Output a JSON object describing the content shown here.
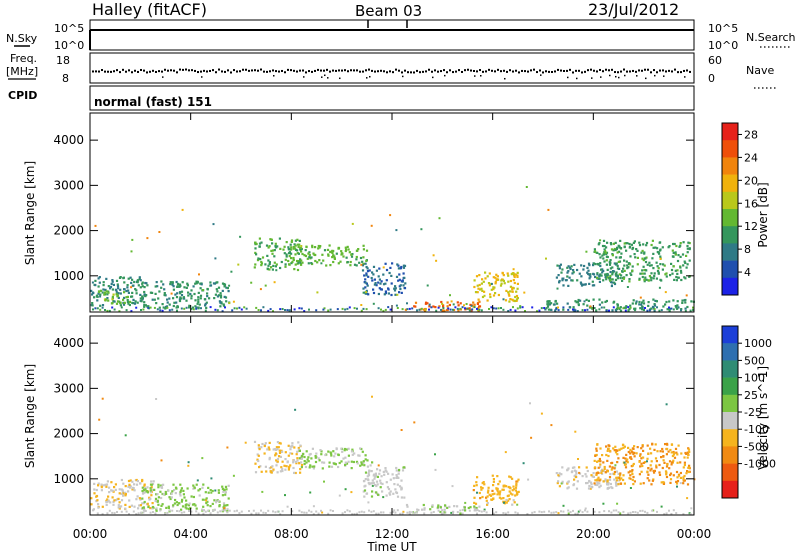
{
  "header": {
    "title": "Halley (fitACF)",
    "beam": "Beam 03",
    "date": "23/Jul/2012"
  },
  "top_panels": {
    "nsky": {
      "label": "N.Sky",
      "tick_hi": "10^5",
      "tick_lo": "10^0"
    },
    "nsearch": {
      "label": "N.Search",
      "tick_hi": "10^5",
      "tick_lo": "10^0"
    },
    "freq": {
      "label_1": "Freq.",
      "label_2": "[MHz]",
      "tick_hi": "18",
      "tick_lo": "8"
    },
    "nave": {
      "label": "Nave",
      "tick_hi": "60",
      "tick_lo": "0"
    },
    "cpid": {
      "label": "CPID",
      "value": "normal (fast) 151"
    }
  },
  "x_axis": {
    "title": "Time UT",
    "ticks": [
      "00:00",
      "04:00",
      "08:00",
      "12:00",
      "16:00",
      "20:00",
      "00:00"
    ]
  },
  "power_panel": {
    "ylabel": "Slant Range [km]",
    "yticks": [
      "1000",
      "2000",
      "3000",
      "4000"
    ],
    "colorbar_label": "Power [dB]",
    "colorbar_ticks": [
      "4",
      "8",
      "12",
      "16",
      "20",
      "24",
      "28"
    ],
    "colors": [
      "#1c22e6",
      "#1f4fae",
      "#2f7a86",
      "#34965c",
      "#63b832",
      "#b9c81a",
      "#f0b20c",
      "#f1840c",
      "#ef4f09",
      "#e6211a"
    ]
  },
  "velocity_panel": {
    "ylabel": "Slant Range [km]",
    "yticks": [
      "1000",
      "2000",
      "3000",
      "4000"
    ],
    "colorbar_label": "Velocity [m s^-1]",
    "colorbar_ticks": [
      "1000",
      "500",
      "100",
      "25",
      "-25",
      "-100",
      "-500",
      "-1000"
    ],
    "colors": [
      "#1c3fd8",
      "#2e6fb0",
      "#2f8c74",
      "#3aa248",
      "#7cc642",
      "#c8c8c8",
      "#f5b41e",
      "#f18a12",
      "#ee5a10",
      "#e6201a"
    ]
  },
  "chart_data": [
    {
      "type": "heatmap",
      "title": "Power",
      "xlabel": "Time UT",
      "ylabel": "Slant Range [km]",
      "xlim": [
        0,
        24
      ],
      "ylim": [
        200,
        4600
      ],
      "value_label": "Power [dB]",
      "value_range": [
        0,
        30
      ],
      "regions": [
        {
          "t0": 0.0,
          "t1": 2.2,
          "r0": 350,
          "r1": 1000,
          "value": 9
        },
        {
          "t0": 0.3,
          "t1": 1.6,
          "r0": 400,
          "r1": 700,
          "value": 14
        },
        {
          "t0": 2.0,
          "t1": 5.5,
          "r0": 300,
          "r1": 900,
          "value": 10
        },
        {
          "t0": 6.5,
          "t1": 8.4,
          "r0": 1150,
          "r1": 1850,
          "value": 12
        },
        {
          "t0": 8.0,
          "t1": 11.0,
          "r0": 1250,
          "r1": 1700,
          "value": 13
        },
        {
          "t0": 10.8,
          "t1": 12.5,
          "r0": 600,
          "r1": 1300,
          "value": 6
        },
        {
          "t0": 12.5,
          "t1": 15.5,
          "r0": 250,
          "r1": 450,
          "value": 24
        },
        {
          "t0": 15.2,
          "t1": 17.0,
          "r0": 450,
          "r1": 1100,
          "value": 18
        },
        {
          "t0": 18.5,
          "t1": 21.0,
          "r0": 800,
          "r1": 1300,
          "value": 8
        },
        {
          "t0": 20.0,
          "t1": 23.8,
          "r0": 900,
          "r1": 1800,
          "value": 11
        },
        {
          "t0": 18.0,
          "t1": 24.0,
          "r0": 250,
          "r1": 500,
          "value": 10
        }
      ]
    },
    {
      "type": "heatmap",
      "title": "Velocity",
      "xlabel": "Time UT",
      "ylabel": "Slant Range [km]",
      "xlim": [
        0,
        24
      ],
      "ylim": [
        200,
        4600
      ],
      "value_label": "Velocity [m s^-1]",
      "value_range": [
        -1000,
        1000
      ],
      "regions": [
        {
          "t0": 0.0,
          "t1": 2.5,
          "r0": 350,
          "r1": 1000,
          "value": -150
        },
        {
          "t0": 2.0,
          "t1": 5.5,
          "r0": 300,
          "r1": 900,
          "value": 60
        },
        {
          "t0": 6.5,
          "t1": 8.4,
          "r0": 1150,
          "r1": 1850,
          "value": -200
        },
        {
          "t0": 8.2,
          "t1": 11.2,
          "r0": 1250,
          "r1": 1700,
          "value": 50
        },
        {
          "t0": 10.8,
          "t1": 12.5,
          "r0": 600,
          "r1": 1300,
          "value": -80
        },
        {
          "t0": 12.5,
          "t1": 15.5,
          "r0": 250,
          "r1": 450,
          "value": 10
        },
        {
          "t0": 15.2,
          "t1": 17.0,
          "r0": 450,
          "r1": 1100,
          "value": -300
        },
        {
          "t0": 18.5,
          "t1": 21.0,
          "r0": 800,
          "r1": 1300,
          "value": -120
        },
        {
          "t0": 20.0,
          "t1": 23.8,
          "r0": 900,
          "r1": 1800,
          "value": -400
        }
      ]
    }
  ]
}
